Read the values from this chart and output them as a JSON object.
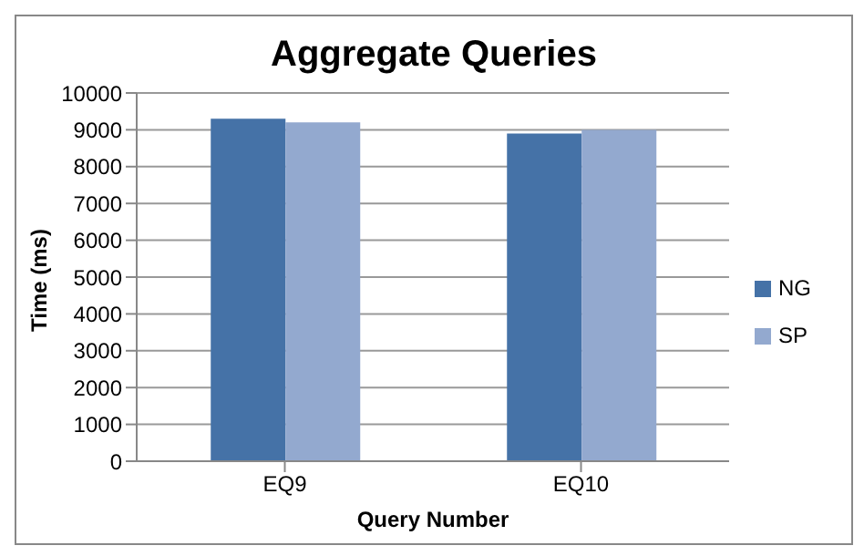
{
  "chart_data": {
    "type": "bar",
    "title": "Aggregate Queries",
    "xlabel": "Query Number",
    "ylabel": "Time (ms)",
    "categories": [
      "EQ9",
      "EQ10"
    ],
    "series": [
      {
        "name": "NG",
        "color": "#4572a7",
        "values": [
          9300,
          8900
        ]
      },
      {
        "name": "SP",
        "color": "#93a9cf",
        "values": [
          9200,
          9000
        ]
      }
    ],
    "ylim": [
      0,
      10000
    ],
    "yticks": [
      0,
      1000,
      2000,
      3000,
      4000,
      5000,
      6000,
      7000,
      8000,
      9000,
      10000
    ],
    "grid": "y",
    "legend": "right"
  }
}
